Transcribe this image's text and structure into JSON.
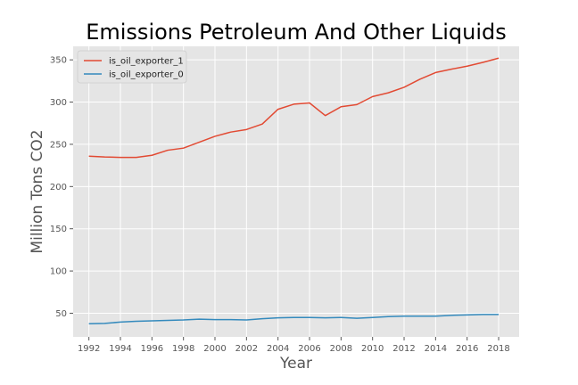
{
  "chart_data": {
    "type": "line",
    "title": "Emissions Petroleum And Other Liquids",
    "xlabel": "Year",
    "ylabel": "Million Tons CO2",
    "xlim": [
      1991,
      2019.3
    ],
    "ylim": [
      22,
      366
    ],
    "grid": true,
    "legend_position": "top-left",
    "x_ticks": [
      1992,
      1994,
      1996,
      1998,
      2000,
      2002,
      2004,
      2006,
      2008,
      2010,
      2012,
      2014,
      2016,
      2018
    ],
    "y_ticks": [
      50,
      100,
      150,
      200,
      250,
      300,
      350
    ],
    "x": [
      1992,
      1993,
      1994,
      1995,
      1996,
      1997,
      1998,
      1999,
      2000,
      2001,
      2002,
      2003,
      2004,
      2005,
      2006,
      2007,
      2008,
      2009,
      2010,
      2011,
      2012,
      2013,
      2014,
      2015,
      2016,
      2017,
      2018
    ],
    "series": [
      {
        "name": "is_oil_exporter_1",
        "color": "#e24a33",
        "values": [
          236,
          235,
          234.5,
          234.5,
          237,
          243,
          245.5,
          252.5,
          259.5,
          264.5,
          267.5,
          274,
          291.5,
          297.5,
          299,
          284,
          294.5,
          297,
          306.5,
          311,
          317.5,
          327,
          335,
          339,
          342.5,
          347,
          352
        ]
      },
      {
        "name": "is_oil_exporter_0",
        "color": "#348abd",
        "values": [
          37.5,
          38,
          39.5,
          40.5,
          41,
          41.5,
          42,
          43,
          42.5,
          42.5,
          42,
          43.5,
          44.5,
          45,
          45,
          44.5,
          45,
          44,
          45,
          46,
          46.5,
          46.5,
          46.5,
          47.5,
          48,
          48.5,
          48.5
        ]
      }
    ]
  }
}
